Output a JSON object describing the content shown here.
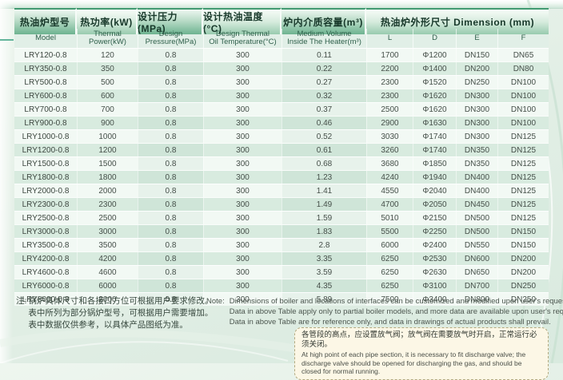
{
  "table": {
    "header_row1": [
      "热油炉型号",
      "热功率(kW)",
      "设计压力(MPa)",
      "设计热油温度(°C)",
      "炉内介质容量(m³)",
      "热油炉外形尺寸  Dimension (mm)"
    ],
    "header_row2": [
      "Model",
      "Thermal\nPower(kW)",
      "Design\nPressure(MPa)",
      "Design Thermal\nOil Temperature(°C)",
      "Medium Volume\nInside The Heater(m³)",
      "L",
      "D",
      "E",
      "F"
    ],
    "rows": [
      [
        "LRY120-0.8",
        "120",
        "0.8",
        "300",
        "0.11",
        "1700",
        "Φ1200",
        "DN150",
        "DN65"
      ],
      [
        "LRY350-0.8",
        "350",
        "0.8",
        "300",
        "0.22",
        "2200",
        "Φ1400",
        "DN200",
        "DN80"
      ],
      [
        "LRY500-0.8",
        "500",
        "0.8",
        "300",
        "0.27",
        "2300",
        "Φ1520",
        "DN250",
        "DN100"
      ],
      [
        "LRY600-0.8",
        "600",
        "0.8",
        "300",
        "0.32",
        "2300",
        "Φ1620",
        "DN300",
        "DN100"
      ],
      [
        "LRY700-0.8",
        "700",
        "0.8",
        "300",
        "0.37",
        "2500",
        "Φ1620",
        "DN300",
        "DN100"
      ],
      [
        "LRY900-0.8",
        "900",
        "0.8",
        "300",
        "0.46",
        "2900",
        "Φ1630",
        "DN300",
        "DN100"
      ],
      [
        "LRY1000-0.8",
        "1000",
        "0.8",
        "300",
        "0.52",
        "3030",
        "Φ1740",
        "DN300",
        "DN125"
      ],
      [
        "LRY1200-0.8",
        "1200",
        "0.8",
        "300",
        "0.61",
        "3260",
        "Φ1740",
        "DN350",
        "DN125"
      ],
      [
        "LRY1500-0.8",
        "1500",
        "0.8",
        "300",
        "0.68",
        "3680",
        "Φ1850",
        "DN350",
        "DN125"
      ],
      [
        "LRY1800-0.8",
        "1800",
        "0.8",
        "300",
        "1.23",
        "4240",
        "Φ1940",
        "DN400",
        "DN125"
      ],
      [
        "LRY2000-0.8",
        "2000",
        "0.8",
        "300",
        "1.41",
        "4550",
        "Φ2040",
        "DN400",
        "DN125"
      ],
      [
        "LRY2300-0.8",
        "2300",
        "0.8",
        "300",
        "1.49",
        "4700",
        "Φ2050",
        "DN450",
        "DN125"
      ],
      [
        "LRY2500-0.8",
        "2500",
        "0.8",
        "300",
        "1.59",
        "5010",
        "Φ2150",
        "DN500",
        "DN125"
      ],
      [
        "LRY3000-0.8",
        "3000",
        "0.8",
        "300",
        "1.83",
        "5500",
        "Φ2250",
        "DN500",
        "DN150"
      ],
      [
        "LRY3500-0.8",
        "3500",
        "0.8",
        "300",
        "2.8",
        "6000",
        "Φ2400",
        "DN550",
        "DN150"
      ],
      [
        "LRY4200-0.8",
        "4200",
        "0.8",
        "300",
        "3.35",
        "6250",
        "Φ2530",
        "DN600",
        "DN200"
      ],
      [
        "LRY4600-0.8",
        "4600",
        "0.8",
        "300",
        "3.59",
        "6250",
        "Φ2630",
        "DN650",
        "DN200"
      ],
      [
        "LRY6000-0.8",
        "6000",
        "0.8",
        "300",
        "4.35",
        "6250",
        "Φ3100",
        "DN700",
        "DN250"
      ],
      [
        "LRY8000-0.8",
        "8000",
        "0.8",
        "300",
        "5.89",
        "7500",
        "Φ3400",
        "DN800",
        "DN250"
      ]
    ]
  },
  "notes_cn": {
    "label": "注:",
    "line1": "锅炉具体尺寸和各接口方位可根据用户要求修改。",
    "line2": "表中所列为部分锅炉型号，可根据用户需要增加。",
    "line3": "表中数据仅供参考，以具体产品图纸为准。"
  },
  "notes_en": {
    "label": "Note:",
    "line1": "Dimensions of boiler and locations of interfaces can be customized and modified upon user's request.",
    "line2": "Data in above Table apply only to partial boiler models, and more data are available upon user's request.",
    "line3": "Data in above Table are for reference only, and data in drawings of actual products shall prevail."
  },
  "callout": {
    "cn": "各管段的高点，应设置放气阀；放气阀在需要放气时开启，正常运行必须关闭。",
    "en": "At high point of each pipe section, it is necessary to fit  discharge valve; the discharge valve should be opened for  discharging the gas, and should be closed for normal  running."
  },
  "colors": {
    "accent_green": "#419a71",
    "row_stripe": "#d8ebdf",
    "callout_bg": "#fcf7e6"
  }
}
